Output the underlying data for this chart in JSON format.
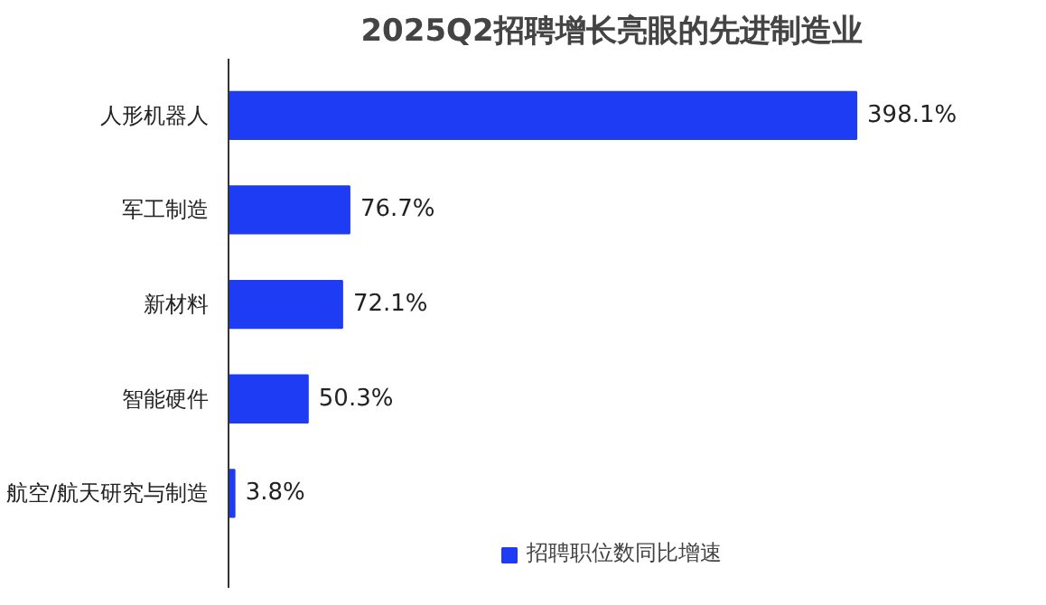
{
  "chart_data": {
    "type": "bar",
    "orientation": "horizontal",
    "title": "2025Q2招聘增长亮眼的先进制造业",
    "categories": [
      "人形机器人",
      "军工制造",
      "新材料",
      "智能硬件",
      "航空/航天研究与制造"
    ],
    "series": [
      {
        "name": "招聘职位数同比增速",
        "color": "#1f3cf5",
        "values": [
          398.1,
          76.7,
          72.1,
          50.3,
          3.8
        ],
        "value_labels": [
          "398.1%",
          "76.7%",
          "72.1%",
          "50.3%",
          "3.8%"
        ]
      }
    ],
    "tick_labels": "y",
    "grid": false,
    "legend": "bottom"
  }
}
